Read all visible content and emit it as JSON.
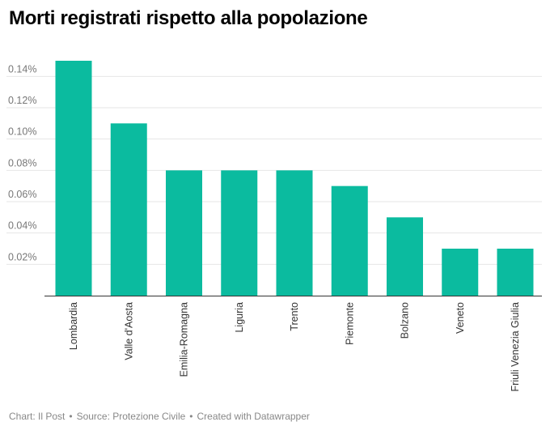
{
  "chart_data": {
    "type": "bar",
    "title": "Morti registrati rispetto alla popolazione",
    "categories": [
      "Lombardia",
      "Valle d'Aosta",
      "Emilia-Romagna",
      "Liguria",
      "Trento",
      "Piemonte",
      "Bolzano",
      "Veneto",
      "Friuli Venezia Giulia"
    ],
    "values": [
      0.15,
      0.11,
      0.08,
      0.08,
      0.08,
      0.07,
      0.05,
      0.03,
      0.03
    ],
    "ylim": [
      0,
      0.15
    ],
    "yticks": [
      0.02,
      0.04,
      0.06,
      0.08,
      0.1,
      0.12,
      0.14
    ],
    "ytick_labels": [
      "0.02%",
      "0.04%",
      "0.06%",
      "0.08%",
      "0.10%",
      "0.12%",
      "0.14%"
    ],
    "xlabel": "",
    "ylabel": "",
    "bar_color": "#0bbb9f",
    "grid_color": "#e6e6e6",
    "grid": true,
    "legend": "none"
  },
  "footer": {
    "chart_credit": "Chart: Il Post",
    "source": "Source: Protezione Civile",
    "created": "Created with Datawrapper",
    "separator": "•"
  }
}
